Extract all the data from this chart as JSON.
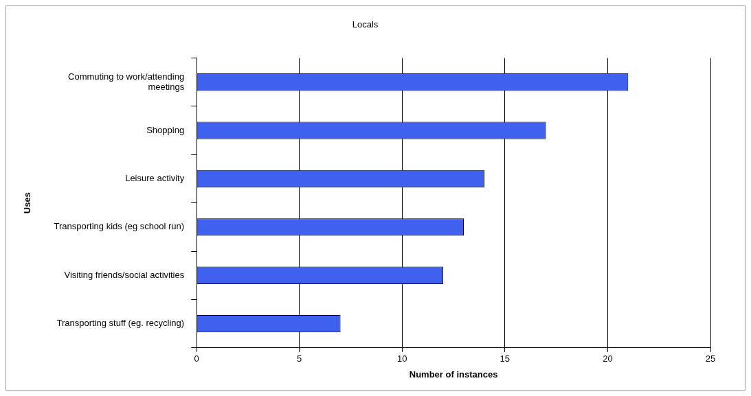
{
  "chart_data": {
    "type": "bar",
    "orientation": "horizontal",
    "title": "Locals",
    "xlabel": "Number of instances",
    "ylabel": "Uses",
    "categories": [
      "Commuting to work/attending meetings",
      "Shopping",
      "Leisure activity",
      "Transporting kids (eg school run)",
      "Visiting friends/social activities",
      "Transporting stuff (eg. recycling)"
    ],
    "values": [
      21,
      17,
      14,
      13,
      12,
      7
    ],
    "color": "#4060f0",
    "xlim": [
      0,
      25
    ],
    "xticks": [
      0,
      5,
      10,
      15,
      20,
      25
    ],
    "grid": "x",
    "legend": false
  }
}
